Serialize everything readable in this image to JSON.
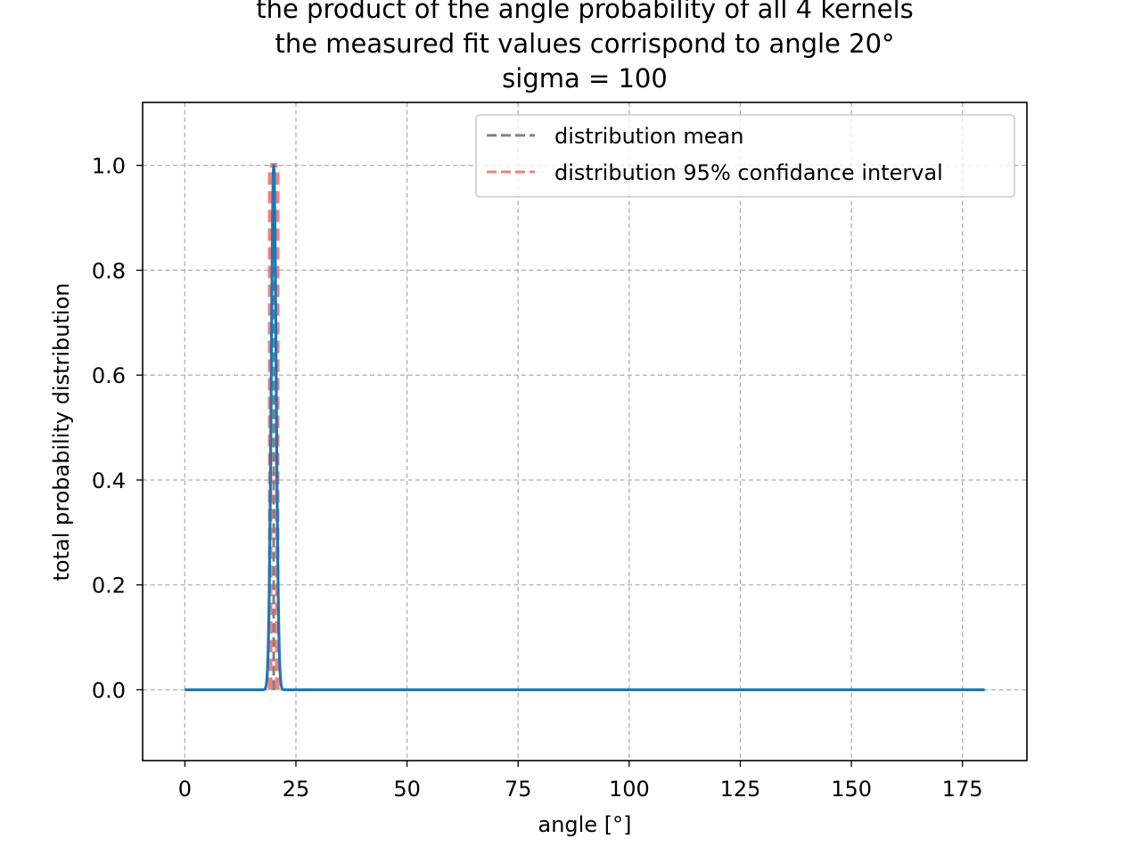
{
  "chart_data": {
    "type": "line",
    "title_lines": [
      "the product of the angle probability of all 4 kernels",
      "the measured fit values corrispond to angle 20°",
      "sigma = 100"
    ],
    "xlabel": "angle [°]",
    "ylabel": "total probability distribution",
    "xlim": [
      -9.5,
      189.5
    ],
    "ylim": [
      -0.135,
      1.12
    ],
    "xticks": [
      0,
      25,
      50,
      75,
      100,
      125,
      150,
      175
    ],
    "xtick_labels": [
      "0",
      "25",
      "50",
      "75",
      "100",
      "125",
      "150",
      "175"
    ],
    "yticks": [
      0.0,
      0.2,
      0.4,
      0.6,
      0.8,
      1.0
    ],
    "ytick_labels": [
      "0.0",
      "0.2",
      "0.4",
      "0.6",
      "0.8",
      "1.0"
    ],
    "grid": true,
    "legend_position": "upper right",
    "legend": [
      {
        "label": "distribution mean",
        "color": "#808080",
        "style": "dashed"
      },
      {
        "label": "distribution 95% confidance interval",
        "color": "#f08080",
        "style": "dashed"
      }
    ],
    "curve": {
      "color": "#1f77b4",
      "x_range": [
        0,
        180
      ],
      "peak_x": 20,
      "peak_y": 1.0,
      "gaussian_sigma": 0.55
    },
    "mean_line": {
      "x": 20,
      "y_range": [
        0,
        1.0
      ],
      "color": "#808080"
    },
    "ci_lines": {
      "x": [
        19.2,
        20.8
      ],
      "y_range": [
        0,
        1.0
      ],
      "color": "#f08080"
    }
  }
}
